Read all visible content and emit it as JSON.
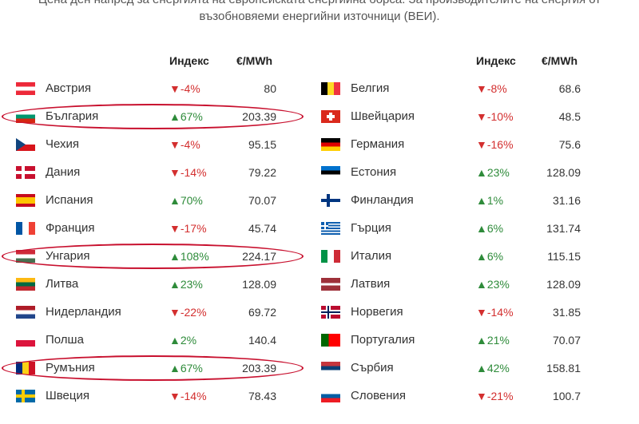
{
  "intro": {
    "line1": "Цена ден напред за енергията на европейската енергийна борса. За производителите на енергия от",
    "line2": "възобновяеми енергийни източници (ВЕИ)."
  },
  "headers": {
    "index": "Индекс",
    "price": "€/MWh"
  },
  "left": [
    {
      "name": "Австрия",
      "arrow": "▼",
      "index": "-4%",
      "dir": "down",
      "price": "80",
      "flag": "austria"
    },
    {
      "name": "България",
      "arrow": "▲",
      "index": "67%",
      "dir": "up",
      "price": "203.39",
      "flag": "bulgaria"
    },
    {
      "name": "Чехия",
      "arrow": "▼",
      "index": "-4%",
      "dir": "down",
      "price": "95.15",
      "flag": "czech"
    },
    {
      "name": "Дания",
      "arrow": "▼",
      "index": "-14%",
      "dir": "down",
      "price": "79.22",
      "flag": "denmark"
    },
    {
      "name": "Испания",
      "arrow": "▲",
      "index": "70%",
      "dir": "up",
      "price": "70.07",
      "flag": "spain"
    },
    {
      "name": "Франция",
      "arrow": "▼",
      "index": "-17%",
      "dir": "down",
      "price": "45.74",
      "flag": "france"
    },
    {
      "name": "Унгария",
      "arrow": "▲",
      "index": "108%",
      "dir": "up",
      "price": "224.17",
      "flag": "hungary"
    },
    {
      "name": "Литва",
      "arrow": "▲",
      "index": "23%",
      "dir": "up",
      "price": "128.09",
      "flag": "lithuania"
    },
    {
      "name": "Нидерландия",
      "arrow": "▼",
      "index": "-22%",
      "dir": "down",
      "price": "69.72",
      "flag": "netherlands"
    },
    {
      "name": "Полша",
      "arrow": "▲",
      "index": "2%",
      "dir": "up",
      "price": "140.4",
      "flag": "poland"
    },
    {
      "name": "Румъния",
      "arrow": "▲",
      "index": "67%",
      "dir": "up",
      "price": "203.39",
      "flag": "romania"
    },
    {
      "name": "Швеция",
      "arrow": "▼",
      "index": "-14%",
      "dir": "down",
      "price": "78.43",
      "flag": "sweden"
    }
  ],
  "right": [
    {
      "name": "Белгия",
      "arrow": "▼",
      "index": "-8%",
      "dir": "down",
      "price": "68.6",
      "flag": "belgium"
    },
    {
      "name": "Швейцария",
      "arrow": "▼",
      "index": "-10%",
      "dir": "down",
      "price": "48.5",
      "flag": "switzerland"
    },
    {
      "name": "Германия",
      "arrow": "▼",
      "index": "-16%",
      "dir": "down",
      "price": "75.6",
      "flag": "germany"
    },
    {
      "name": "Естония",
      "arrow": "▲",
      "index": "23%",
      "dir": "up",
      "price": "128.09",
      "flag": "estonia"
    },
    {
      "name": "Финландия",
      "arrow": "▲",
      "index": "1%",
      "dir": "up",
      "price": "31.16",
      "flag": "finland"
    },
    {
      "name": "Гърция",
      "arrow": "▲",
      "index": "6%",
      "dir": "up",
      "price": "131.74",
      "flag": "greece"
    },
    {
      "name": "Италия",
      "arrow": "▲",
      "index": "6%",
      "dir": "up",
      "price": "115.15",
      "flag": "italy"
    },
    {
      "name": "Латвия",
      "arrow": "▲",
      "index": "23%",
      "dir": "up",
      "price": "128.09",
      "flag": "latvia"
    },
    {
      "name": "Норвегия",
      "arrow": "▼",
      "index": "-14%",
      "dir": "down",
      "price": "31.85",
      "flag": "norway"
    },
    {
      "name": "Португалия",
      "arrow": "▲",
      "index": "21%",
      "dir": "up",
      "price": "70.07",
      "flag": "portugal"
    },
    {
      "name": "Сърбия",
      "arrow": "▲",
      "index": "42%",
      "dir": "up",
      "price": "158.81",
      "flag": "serbia"
    },
    {
      "name": "Словения",
      "arrow": "▼",
      "index": "-21%",
      "dir": "down",
      "price": "100.7",
      "flag": "slovenia"
    }
  ],
  "highlighted": [
    "България",
    "Унгария",
    "Румъния"
  ],
  "colors": {
    "up": "#2e8b3a",
    "down": "#d32f2f",
    "highlight": "#c8102e"
  }
}
